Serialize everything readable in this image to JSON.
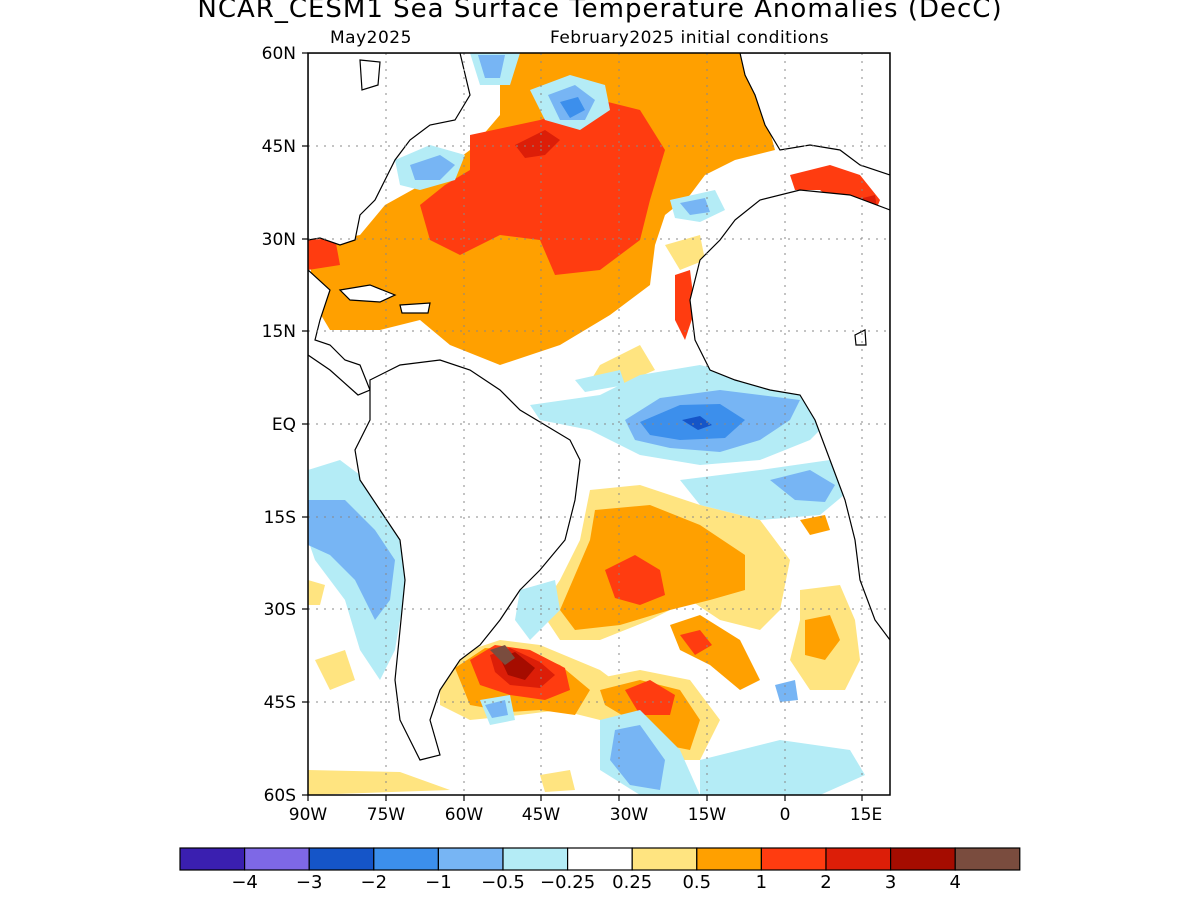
{
  "header": {
    "title": "NCAR_CESM1 Sea Surface Temperature Anomalies (DecC)",
    "valid_month": "May2025",
    "init": "February2025 initial conditions"
  },
  "axes": {
    "lat_ticks": [
      "60N",
      "45N",
      "30N",
      "15N",
      "EQ",
      "15S",
      "30S",
      "45S",
      "60S"
    ],
    "lon_ticks": [
      "90W",
      "75W",
      "60W",
      "45W",
      "30W",
      "15W",
      "0",
      "15E"
    ]
  },
  "colorbar": {
    "colors": [
      "#3a1fb0",
      "#7e68e6",
      "#1555c8",
      "#3c8fec",
      "#77b5f4",
      "#b4ecf6",
      "#ffffff",
      "#ffe480",
      "#ffa000",
      "#ff3c10",
      "#dc1e08",
      "#a50c00",
      "#7a4c3e"
    ],
    "labels": [
      "−4",
      "−3",
      "−2",
      "−1",
      "−0.5",
      "−0.25",
      "0.25",
      "0.5",
      "1",
      "2",
      "3",
      "4"
    ]
  }
}
